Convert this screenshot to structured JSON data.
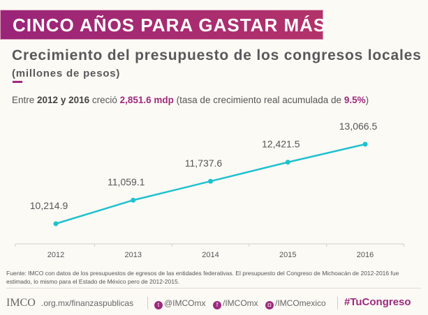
{
  "banner": {
    "title": "CINCO AÑOS PARA GASTAR MÁS"
  },
  "subtitle": {
    "main": "Crecimiento del presupuesto de los congresos locales",
    "units": "(millones de pesos)"
  },
  "lead": {
    "p1": "Entre ",
    "y1": "2012 y 2016",
    "p2": " creció ",
    "amount": "2,851.6 mdp",
    "p3": " (tasa de crecimiento real acumulada de ",
    "rate": "9.5%",
    "p4": ")"
  },
  "chart_data": {
    "type": "line",
    "x": [
      "2012",
      "2013",
      "2014",
      "2015",
      "2016"
    ],
    "values": [
      10214.9,
      11059.1,
      11737.6,
      12421.5,
      13066.5
    ],
    "labels": [
      "10,214.9",
      "11,059.1",
      "11,737.6",
      "12,421.5",
      "13,066.5"
    ],
    "color": "#1fc1cf",
    "grid": false,
    "title": "",
    "xlabel": "",
    "ylabel": ""
  },
  "source": "Fuente: IMCO con datos de los presupuestos de egresos de las entidades federativas. El presupuesto del Congreso de Michoacán de 2012-2016 fue estimado, lo mismo para el Estado de México pero de 2012-2015.",
  "footer": {
    "logo": "IMCO",
    "site": ".org.mx/finanzaspublicas",
    "twitter": "@IMCOmx",
    "facebook": "/IMCOmx",
    "instagram": "/IMCOmexico",
    "hashtag": "#TuCongreso"
  },
  "colors": {
    "brand": "#9d2a7d",
    "line": "#1fc1cf"
  }
}
